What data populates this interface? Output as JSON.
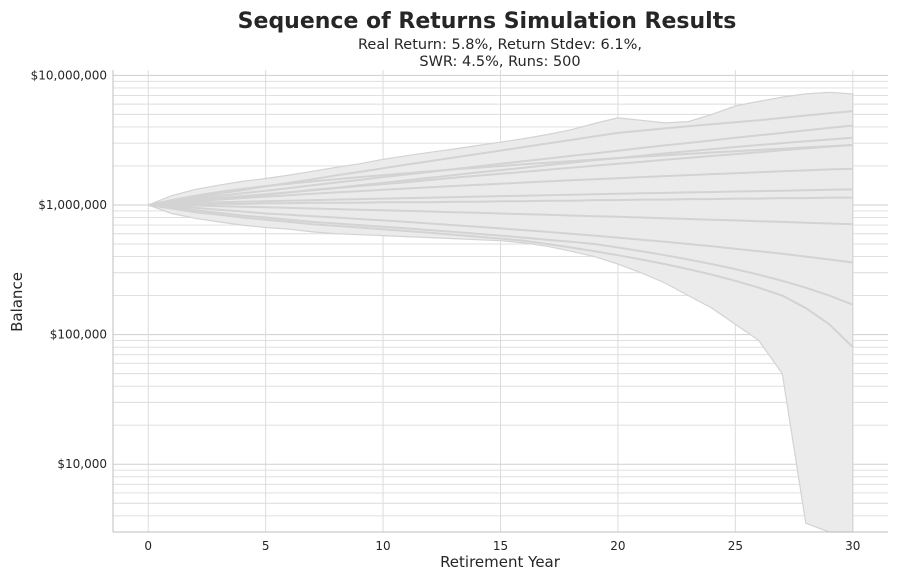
{
  "chart_data": {
    "type": "line",
    "title": "Sequence of Returns Simulation Results",
    "subtitle_lines": [
      "Real Return: 5.8%, Return Stdev: 6.1%,",
      "SWR: 4.5%, Runs: 500"
    ],
    "xlabel": "Retirement Year",
    "ylabel": "Balance",
    "y_scale": "log",
    "xlim": [
      -1.5,
      31.5
    ],
    "ylim": [
      3000,
      11000000
    ],
    "x_ticks": [
      0,
      5,
      10,
      15,
      20,
      25,
      30
    ],
    "x_tick_labels": [
      "0",
      "5",
      "10",
      "15",
      "20",
      "25",
      "30"
    ],
    "y_ticks": [
      10000,
      100000,
      1000000,
      10000000
    ],
    "y_tick_labels": [
      "$10,000",
      "$100,000",
      "$1,000,000",
      "$10,000,000"
    ],
    "grid": true,
    "series_color": "#d3d3d3",
    "band_color": "#ebebeb",
    "years": [
      0,
      1,
      2,
      3,
      4,
      5,
      6,
      7,
      8,
      9,
      10,
      11,
      12,
      13,
      14,
      15,
      16,
      17,
      18,
      19,
      20,
      21,
      22,
      23,
      24,
      25,
      26,
      27,
      28,
      29,
      30
    ],
    "envelope": {
      "upper": [
        1000000,
        1180000,
        1320000,
        1420000,
        1520000,
        1600000,
        1700000,
        1820000,
        1950000,
        2080000,
        2250000,
        2400000,
        2550000,
        2700000,
        2870000,
        3050000,
        3250000,
        3500000,
        3800000,
        4250000,
        4700000,
        4500000,
        4300000,
        4400000,
        5000000,
        5800000,
        6300000,
        6800000,
        7200000,
        7400000,
        7200000
      ],
      "lower": [
        1000000,
        860000,
        790000,
        740000,
        700000,
        670000,
        650000,
        620000,
        600000,
        590000,
        580000,
        570000,
        560000,
        550000,
        540000,
        530000,
        510000,
        480000,
        440000,
        400000,
        350000,
        300000,
        250000,
        200000,
        160000,
        120000,
        90000,
        50000,
        3500,
        3000,
        3000
      ]
    },
    "series": [
      {
        "values": [
          1000000,
          1070000,
          1140000,
          1220000,
          1300000,
          1390000,
          1480000,
          1580000,
          1690000,
          1800000,
          1920000,
          2050000,
          2180000,
          2320000,
          2470000,
          2630000,
          2800000,
          2980000,
          3170000,
          3380000,
          3600000,
          3750000,
          3900000,
          4050000,
          4200000,
          4350000,
          4500000,
          4700000,
          4900000,
          5100000,
          5300000
        ]
      },
      {
        "values": [
          1000000,
          1060000,
          1110000,
          1170000,
          1230000,
          1290000,
          1350000,
          1420000,
          1490000,
          1560000,
          1640000,
          1720000,
          1800000,
          1890000,
          1980000,
          2080000,
          2180000,
          2280000,
          2390000,
          2500000,
          2620000,
          2750000,
          2880000,
          3010000,
          3150000,
          3300000,
          3450000,
          3600000,
          3760000,
          3930000,
          4100000
        ]
      },
      {
        "values": [
          1000000,
          1050000,
          1090000,
          1130000,
          1170000,
          1210000,
          1250000,
          1300000,
          1350000,
          1400000,
          1450000,
          1500000,
          1560000,
          1620000,
          1680000,
          1740000,
          1800000,
          1870000,
          1940000,
          2010000,
          2080000,
          2150000,
          2230000,
          2310000,
          2390000,
          2470000,
          2550000,
          2640000,
          2730000,
          2820000,
          2900000
        ]
      },
      {
        "values": [
          1000000,
          1040000,
          1070000,
          1100000,
          1130000,
          1160000,
          1190000,
          1220000,
          1250000,
          1280000,
          1310000,
          1340000,
          1370000,
          1400000,
          1430000,
          1460000,
          1490000,
          1520000,
          1550000,
          1580000,
          1610000,
          1640000,
          1670000,
          1700000,
          1730000,
          1760000,
          1790000,
          1820000,
          1850000,
          1880000,
          1900000
        ]
      },
      {
        "values": [
          1000000,
          1020000,
          1040000,
          1050000,
          1060000,
          1070000,
          1080000,
          1090000,
          1100000,
          1110000,
          1120000,
          1130000,
          1140000,
          1150000,
          1160000,
          1170000,
          1180000,
          1190000,
          1200000,
          1210000,
          1220000,
          1230000,
          1240000,
          1250000,
          1260000,
          1270000,
          1280000,
          1290000,
          1300000,
          1310000,
          1320000
        ]
      },
      {
        "values": [
          1000000,
          1000000,
          990000,
          980000,
          970000,
          960000,
          950000,
          940000,
          930000,
          920000,
          910000,
          900000,
          890000,
          880000,
          870000,
          860000,
          850000,
          840000,
          830000,
          820000,
          810000,
          800000,
          790000,
          780000,
          770000,
          760000,
          750000,
          740000,
          730000,
          720000,
          710000
        ]
      },
      {
        "values": [
          1000000,
          980000,
          950000,
          920000,
          890000,
          860000,
          840000,
          820000,
          800000,
          780000,
          760000,
          740000,
          720000,
          700000,
          680000,
          660000,
          640000,
          620000,
          600000,
          580000,
          560000,
          540000,
          520000,
          500000,
          480000,
          460000,
          440000,
          420000,
          400000,
          380000,
          360000
        ]
      },
      {
        "values": [
          1000000,
          960000,
          910000,
          870000,
          830000,
          800000,
          770000,
          740000,
          720000,
          700000,
          680000,
          660000,
          640000,
          620000,
          600000,
          580000,
          560000,
          540000,
          520000,
          500000,
          470000,
          440000,
          410000,
          380000,
          350000,
          320000,
          290000,
          260000,
          230000,
          200000,
          170000
        ]
      },
      {
        "values": [
          1000000,
          940000,
          880000,
          840000,
          800000,
          770000,
          740000,
          710000,
          690000,
          670000,
          650000,
          630000,
          610000,
          590000,
          570000,
          550000,
          530000,
          500000,
          470000,
          440000,
          410000,
          380000,
          350000,
          320000,
          290000,
          260000,
          230000,
          200000,
          160000,
          120000,
          80000
        ]
      },
      {
        "values": [
          1000000,
          1090000,
          1180000,
          1260000,
          1330000,
          1400000,
          1460000,
          1520000,
          1580000,
          1640000,
          1700000,
          1760000,
          1820000,
          1880000,
          1940000,
          2000000,
          2060000,
          2120000,
          2180000,
          2240000,
          2300000,
          2360000,
          2420000,
          2480000,
          2540000,
          2600000,
          2660000,
          2720000,
          2780000,
          2840000,
          2900000
        ]
      },
      {
        "values": [
          1000000,
          1030000,
          1060000,
          1110000,
          1160000,
          1200000,
          1250000,
          1310000,
          1360000,
          1420000,
          1480000,
          1550000,
          1620000,
          1700000,
          1780000,
          1860000,
          1940000,
          2030000,
          2120000,
          2210000,
          2300000,
          2400000,
          2500000,
          2600000,
          2700000,
          2800000,
          2900000,
          3000000,
          3100000,
          3200000,
          3300000
        ]
      },
      {
        "values": [
          1000000,
          1010000,
          1010000,
          1020000,
          1020000,
          1030000,
          1030000,
          1040000,
          1040000,
          1040000,
          1050000,
          1050000,
          1050000,
          1060000,
          1060000,
          1070000,
          1070000,
          1080000,
          1080000,
          1090000,
          1090000,
          1100000,
          1100000,
          1110000,
          1110000,
          1120000,
          1120000,
          1130000,
          1130000,
          1140000,
          1140000
        ]
      }
    ]
  }
}
